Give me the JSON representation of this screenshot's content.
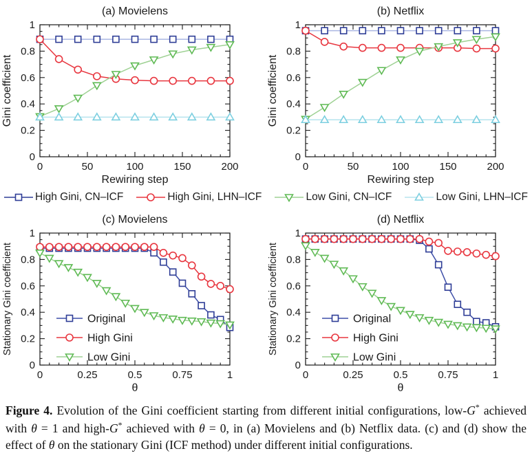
{
  "colors": {
    "axis": "#1a1a1a",
    "navy": "#2e3d96",
    "periwinkle": "#aab6e2",
    "blue_line_bottom": "#3d4ea8",
    "red": "#e8363f",
    "green_marker": "#5fba54",
    "green_line": "#9ed193",
    "cyan_marker": "#7ccfe0",
    "cyan_line": "#b5e3ed"
  },
  "legend": {
    "items": [
      {
        "label": "High Gini, CN–ICF",
        "marker": "square",
        "marker_color": "#2e3d96",
        "line_color": "#2e3d96"
      },
      {
        "label": "High Gini, LHN–ICF",
        "marker": "circle",
        "marker_color": "#e8363f",
        "line_color": "#e8363f"
      },
      {
        "label": "Low Gini, CN–ICF",
        "marker": "tri-down",
        "marker_color": "#5fba54",
        "line_color": "#9ed193"
      },
      {
        "label": "Low Gini, LHN–ICF",
        "marker": "tri-up",
        "marker_color": "#7ccfe0",
        "line_color": "#b5e3ed"
      }
    ]
  },
  "chart_data": [
    {
      "id": "a",
      "type": "line",
      "title": "(a) Movielens",
      "xlabel": "Rewiring step",
      "ylabel": "Gini coefficient",
      "xlim": [
        0,
        200
      ],
      "ylim": [
        0,
        1
      ],
      "xticks": [
        0,
        50,
        100,
        150,
        200
      ],
      "xtick_labels": [
        "0",
        "50",
        "100",
        "150",
        "200"
      ],
      "yticks": [
        0,
        0.2,
        0.4,
        0.6,
        0.8,
        1
      ],
      "ytick_labels": [
        "0",
        "0.2",
        "0.4",
        "0.6",
        "0.8",
        "1"
      ],
      "x_minor_step": 10,
      "y_minor_step": 0.05,
      "ylabel_size": 16,
      "inner_legend": false,
      "grid": false,
      "x": [
        0,
        20,
        40,
        60,
        80,
        100,
        120,
        140,
        160,
        180,
        200
      ],
      "series": [
        {
          "name": "High Gini, CN–ICF",
          "marker": "square",
          "marker_color": "#2e3d96",
          "line_color": "#aab6e2",
          "values": [
            0.89,
            0.89,
            0.89,
            0.89,
            0.89,
            0.89,
            0.89,
            0.89,
            0.89,
            0.89,
            0.89
          ]
        },
        {
          "name": "High Gini, LHN–ICF",
          "marker": "circle",
          "marker_color": "#e8363f",
          "line_color": "#e8363f",
          "values": [
            0.89,
            0.74,
            0.66,
            0.61,
            0.59,
            0.58,
            0.575,
            0.575,
            0.575,
            0.575,
            0.575
          ]
        },
        {
          "name": "Low Gini, CN–ICF",
          "marker": "tri-down",
          "marker_color": "#5fba54",
          "line_color": "#9ed193",
          "values": [
            0.305,
            0.365,
            0.445,
            0.54,
            0.625,
            0.69,
            0.735,
            0.78,
            0.81,
            0.83,
            0.85
          ]
        },
        {
          "name": "Low Gini, LHN–ICF",
          "marker": "tri-up",
          "marker_color": "#7ccfe0",
          "line_color": "#b5e3ed",
          "values": [
            0.3,
            0.3,
            0.3,
            0.3,
            0.3,
            0.3,
            0.3,
            0.3,
            0.3,
            0.3,
            0.3
          ]
        }
      ]
    },
    {
      "id": "b",
      "type": "line",
      "title": "(b) Netflix",
      "xlabel": "Rewiring step",
      "ylabel": "Gini coefficient",
      "xlim": [
        0,
        200
      ],
      "ylim": [
        0,
        1
      ],
      "xticks": [
        0,
        50,
        100,
        150,
        200
      ],
      "xtick_labels": [
        "0",
        "50",
        "100",
        "150",
        "200"
      ],
      "yticks": [
        0,
        0.2,
        0.4,
        0.6,
        0.8,
        1
      ],
      "ytick_labels": [
        "0",
        "0.2",
        "0.4",
        "0.6",
        "0.8",
        "1"
      ],
      "x_minor_step": 10,
      "y_minor_step": 0.05,
      "ylabel_size": 16,
      "inner_legend": false,
      "grid": false,
      "x": [
        0,
        20,
        40,
        60,
        80,
        100,
        120,
        140,
        160,
        180,
        200
      ],
      "series": [
        {
          "name": "High Gini, CN–ICF",
          "marker": "square",
          "marker_color": "#2e3d96",
          "line_color": "#aab6e2",
          "values": [
            0.955,
            0.955,
            0.955,
            0.955,
            0.955,
            0.955,
            0.955,
            0.955,
            0.955,
            0.955,
            0.955
          ]
        },
        {
          "name": "High Gini, LHN–ICF",
          "marker": "circle",
          "marker_color": "#e8363f",
          "line_color": "#e8363f",
          "values": [
            0.955,
            0.87,
            0.835,
            0.825,
            0.825,
            0.825,
            0.825,
            0.825,
            0.825,
            0.82,
            0.82
          ]
        },
        {
          "name": "Low Gini, CN–ICF",
          "marker": "tri-down",
          "marker_color": "#5fba54",
          "line_color": "#9ed193",
          "values": [
            0.285,
            0.375,
            0.475,
            0.565,
            0.655,
            0.735,
            0.8,
            0.835,
            0.865,
            0.89,
            0.91
          ]
        },
        {
          "name": "Low Gini, LHN–ICF",
          "marker": "tri-up",
          "marker_color": "#7ccfe0",
          "line_color": "#b5e3ed",
          "values": [
            0.28,
            0.28,
            0.28,
            0.28,
            0.28,
            0.28,
            0.28,
            0.28,
            0.28,
            0.28,
            0.28
          ]
        }
      ]
    },
    {
      "id": "c",
      "type": "line",
      "title": "(c) Movielens",
      "xlabel": "θ",
      "ylabel": "Stationary Gini coefficient",
      "xlim": [
        0,
        1
      ],
      "ylim": [
        0,
        1
      ],
      "xticks": [
        0,
        0.25,
        0.5,
        0.75,
        1
      ],
      "xtick_labels": [
        "0",
        "0.25",
        "0.5",
        "0.75",
        "1"
      ],
      "yticks": [
        0,
        0.2,
        0.4,
        0.6,
        0.8,
        1
      ],
      "ytick_labels": [
        "0",
        "0.2",
        "0.4",
        "0.6",
        "0.8",
        "1"
      ],
      "x_minor_step": 0.05,
      "y_minor_step": 0.05,
      "ylabel_size": 14.5,
      "inner_legend": true,
      "grid": false,
      "x": [
        0,
        0.05,
        0.1,
        0.15,
        0.2,
        0.25,
        0.3,
        0.35,
        0.4,
        0.45,
        0.5,
        0.55,
        0.6,
        0.65,
        0.7,
        0.75,
        0.8,
        0.85,
        0.9,
        0.95,
        1
      ],
      "series": [
        {
          "name": "Original",
          "marker": "square",
          "marker_color": "#2e3d96",
          "line_color": "#3d4ea8",
          "values": [
            0.885,
            0.885,
            0.885,
            0.885,
            0.885,
            0.885,
            0.885,
            0.885,
            0.885,
            0.885,
            0.885,
            0.885,
            0.85,
            0.78,
            0.705,
            0.62,
            0.54,
            0.45,
            0.38,
            0.345,
            0.285
          ]
        },
        {
          "name": "High Gini",
          "marker": "circle",
          "marker_color": "#e8363f",
          "line_color": "#e8363f",
          "values": [
            0.895,
            0.895,
            0.895,
            0.895,
            0.895,
            0.895,
            0.895,
            0.895,
            0.895,
            0.895,
            0.895,
            0.895,
            0.895,
            0.85,
            0.83,
            0.81,
            0.755,
            0.67,
            0.615,
            0.6,
            0.575
          ]
        },
        {
          "name": "Low Gini",
          "marker": "tri-down",
          "marker_color": "#5fba54",
          "line_color": "#9ed193",
          "values": [
            0.85,
            0.81,
            0.77,
            0.74,
            0.705,
            0.665,
            0.62,
            0.565,
            0.52,
            0.47,
            0.43,
            0.4,
            0.375,
            0.36,
            0.35,
            0.34,
            0.335,
            0.33,
            0.32,
            0.315,
            0.305
          ]
        }
      ]
    },
    {
      "id": "d",
      "type": "line",
      "title": "(d) Netflix",
      "xlabel": "θ",
      "ylabel": "Stationary Gini coefficient",
      "xlim": [
        0,
        1
      ],
      "ylim": [
        0,
        1
      ],
      "xticks": [
        0,
        0.25,
        0.5,
        0.75,
        1
      ],
      "xtick_labels": [
        "0",
        "0.25",
        "0.5",
        "0.75",
        "1"
      ],
      "yticks": [
        0,
        0.2,
        0.4,
        0.6,
        0.8,
        1
      ],
      "ytick_labels": [
        "0",
        "0.2",
        "0.4",
        "0.6",
        "0.8",
        "1"
      ],
      "x_minor_step": 0.05,
      "y_minor_step": 0.05,
      "ylabel_size": 14.5,
      "inner_legend": true,
      "grid": false,
      "x": [
        0,
        0.05,
        0.1,
        0.15,
        0.2,
        0.25,
        0.3,
        0.35,
        0.4,
        0.45,
        0.5,
        0.55,
        0.6,
        0.65,
        0.7,
        0.75,
        0.8,
        0.85,
        0.9,
        0.95,
        1
      ],
      "series": [
        {
          "name": "Original",
          "marker": "square",
          "marker_color": "#2e3d96",
          "line_color": "#3d4ea8",
          "values": [
            0.955,
            0.955,
            0.955,
            0.955,
            0.955,
            0.955,
            0.955,
            0.955,
            0.955,
            0.955,
            0.955,
            0.955,
            0.945,
            0.88,
            0.76,
            0.59,
            0.46,
            0.4,
            0.33,
            0.32,
            0.29
          ]
        },
        {
          "name": "High Gini",
          "marker": "circle",
          "marker_color": "#e8363f",
          "line_color": "#e8363f",
          "values": [
            0.955,
            0.955,
            0.955,
            0.955,
            0.955,
            0.955,
            0.955,
            0.955,
            0.955,
            0.955,
            0.955,
            0.955,
            0.955,
            0.935,
            0.925,
            0.865,
            0.86,
            0.855,
            0.845,
            0.835,
            0.825
          ]
        },
        {
          "name": "Low Gini",
          "marker": "tri-down",
          "marker_color": "#5fba54",
          "line_color": "#9ed193",
          "values": [
            0.905,
            0.855,
            0.81,
            0.765,
            0.715,
            0.655,
            0.595,
            0.545,
            0.49,
            0.445,
            0.415,
            0.385,
            0.36,
            0.34,
            0.325,
            0.31,
            0.3,
            0.29,
            0.285,
            0.28,
            0.275
          ]
        }
      ]
    }
  ],
  "caption": {
    "segments": [
      {
        "text": "Figure 4.",
        "bold": true
      },
      {
        "text": " Evolution of the Gini coefficient starting from different initial configurations, low-"
      },
      {
        "text": "G",
        "italic": true
      },
      {
        "text": "*",
        "sup": true
      },
      {
        "text": " achieved with "
      },
      {
        "text": "θ",
        "italic": true
      },
      {
        "text": " = 1 and high-"
      },
      {
        "text": "G",
        "italic": true
      },
      {
        "text": "*",
        "sup": true
      },
      {
        "text": " achieved with "
      },
      {
        "text": "θ",
        "italic": true
      },
      {
        "text": " = 0, in (a) Movielens and (b) Netflix data. (c) and (d) show the effect of "
      },
      {
        "text": "θ",
        "italic": true
      },
      {
        "text": " on the stationary Gini (ICF method) under different initial configurations."
      }
    ]
  }
}
